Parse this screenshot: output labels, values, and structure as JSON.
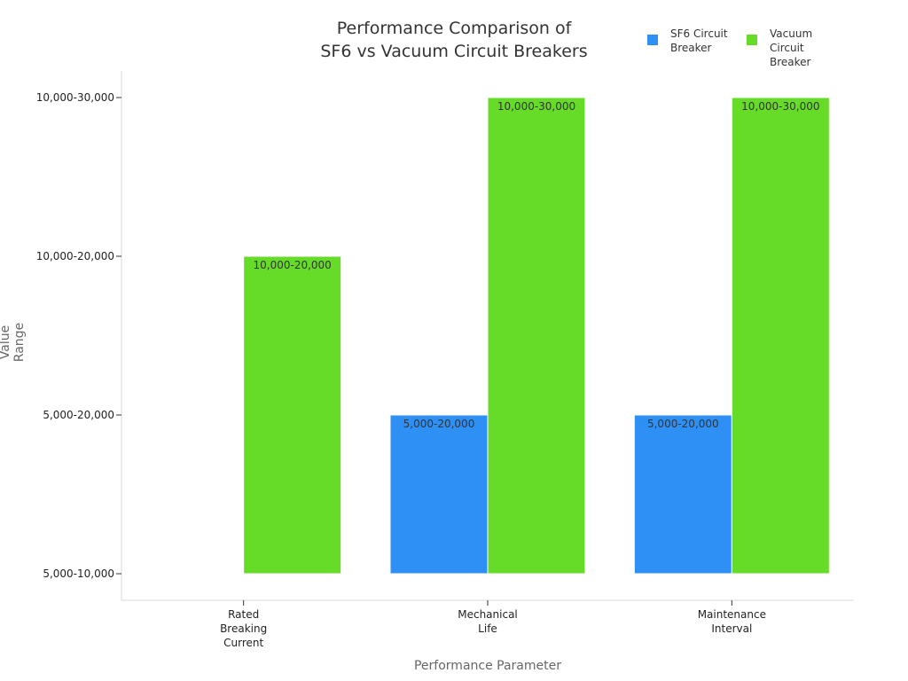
{
  "chart_data": {
    "type": "bar",
    "title_lines": [
      "Performance Comparison of",
      "SF6 vs Vacuum Circuit Breakers"
    ],
    "xlabel": "Performance Parameter",
    "ylabel": "Value Range",
    "categories": [
      [
        "Rated",
        "Breaking",
        "Current"
      ],
      [
        "Mechanical",
        "Life"
      ],
      [
        "Maintenance",
        "Interval"
      ]
    ],
    "y_ticks": [
      "5,000-10,000",
      "5,000-20,000",
      "10,000-20,000",
      "10,000-30,000"
    ],
    "series": [
      {
        "name": "SF6 Circuit Breaker",
        "color": "#2e90f5",
        "values": [
          null,
          "5,000-20,000",
          "5,000-20,000"
        ]
      },
      {
        "name": "Vacuum Circuit Breaker",
        "color": "#66db28",
        "values": [
          "10,000-20,000",
          "10,000-30,000",
          "10,000-30,000"
        ]
      }
    ],
    "legend_position": "top-right",
    "grid": false
  }
}
